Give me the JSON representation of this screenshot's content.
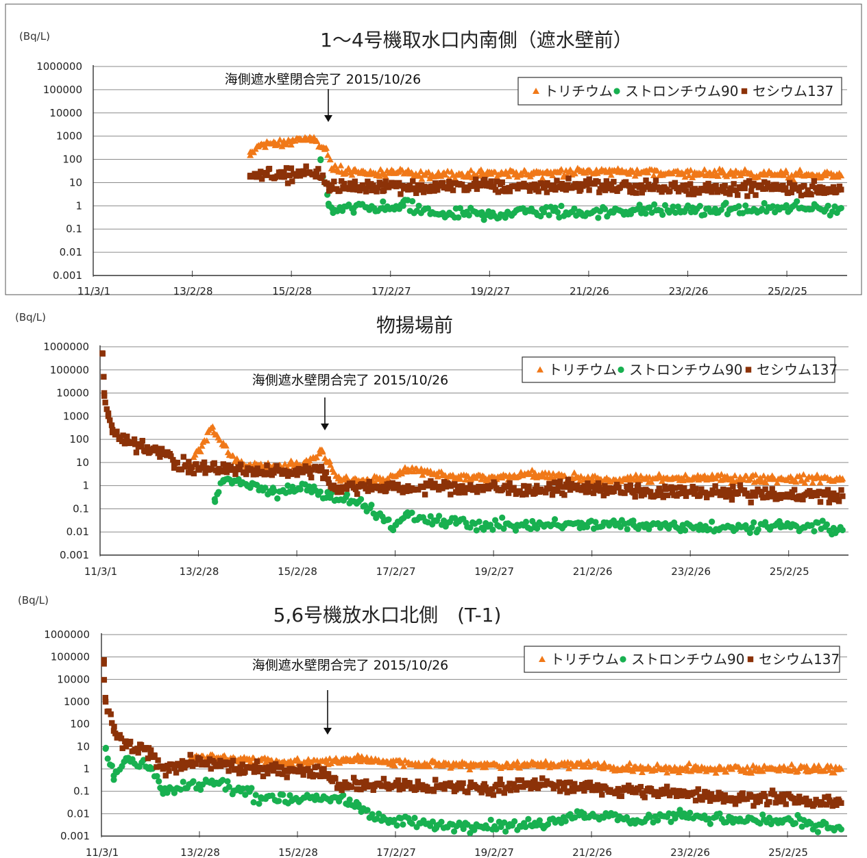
{
  "colors": {
    "tritium": "#f07818",
    "strontium": "#18b050",
    "cesium": "#8c3208"
  },
  "legend_labels": {
    "tritium": "トリチウム",
    "strontium": "ストロンチウム90",
    "cesium": "セシウム137"
  },
  "chart_data": [
    {
      "type": "scatter",
      "title": "1～4号機取水口内南側（遮水壁前）",
      "ylabel": "(Bq/L)",
      "y_scale": "log",
      "ylim": [
        0.001,
        1000000
      ],
      "y_ticks": [
        "1000000",
        "100000",
        "10000",
        "1000",
        "100",
        "10",
        "1",
        "0.1",
        "0.01",
        "0.001"
      ],
      "x_ticks": [
        "11/3/1",
        "13/2/28",
        "15/2/28",
        "17/2/27",
        "19/2/27",
        "21/2/26",
        "23/2/26",
        "25/2/25"
      ],
      "xlim": [
        "2011-03-01",
        "2026-05-15"
      ],
      "grid": true,
      "legend_position": "top-right",
      "annotation": {
        "text": "海側遮水壁閉合完了 2015/10/26",
        "date": "2015-10-26"
      },
      "series": [
        {
          "name": "トリチウム",
          "key": "tritium",
          "marker": "triangle",
          "points": [
            [
              "2014-05-01",
              150
            ],
            [
              "2014-07-01",
              400
            ],
            [
              "2014-09-01",
              500
            ],
            [
              "2014-11-01",
              400
            ],
            [
              "2015-01-01",
              500
            ],
            [
              "2015-03-01",
              600
            ],
            [
              "2015-05-01",
              800
            ],
            [
              "2015-07-01",
              700
            ],
            [
              "2015-09-01",
              600
            ],
            [
              "2015-11-01",
              300
            ],
            [
              "2016-01-01",
              40
            ],
            [
              "2016-06-01",
              30
            ],
            [
              "2017-01-01",
              25
            ],
            [
              "2018-01-01",
              22
            ],
            [
              "2019-01-01",
              25
            ],
            [
              "2020-01-01",
              25
            ],
            [
              "2021-01-01",
              30
            ],
            [
              "2022-01-01",
              30
            ],
            [
              "2023-01-01",
              25
            ],
            [
              "2024-01-01",
              25
            ],
            [
              "2025-01-01",
              22
            ],
            [
              "2026-04-01",
              20
            ]
          ]
        },
        {
          "name": "ストロンチウム90",
          "key": "strontium",
          "marker": "circle",
          "points": [
            [
              "2015-10-01",
              100
            ],
            [
              "2015-12-01",
              1
            ],
            [
              "2016-01-01",
              0.5
            ],
            [
              "2016-06-01",
              0.8
            ],
            [
              "2017-01-01",
              0.8
            ],
            [
              "2017-06-01",
              1
            ],
            [
              "2018-01-01",
              0.5
            ],
            [
              "2019-01-01",
              0.4
            ],
            [
              "2020-01-01",
              0.6
            ],
            [
              "2021-01-01",
              0.5
            ],
            [
              "2022-01-01",
              0.6
            ],
            [
              "2023-01-01",
              0.6
            ],
            [
              "2024-01-01",
              0.7
            ],
            [
              "2025-01-01",
              0.7
            ],
            [
              "2026-04-01",
              0.8
            ]
          ]
        },
        {
          "name": "セシウム137",
          "key": "cesium",
          "marker": "square",
          "points": [
            [
              "2014-05-01",
              20
            ],
            [
              "2014-09-01",
              25
            ],
            [
              "2015-01-01",
              20
            ],
            [
              "2015-05-01",
              25
            ],
            [
              "2015-09-01",
              30
            ],
            [
              "2015-12-01",
              8
            ],
            [
              "2016-06-01",
              6
            ],
            [
              "2017-01-01",
              8
            ],
            [
              "2018-01-01",
              6
            ],
            [
              "2019-01-01",
              8
            ],
            [
              "2020-01-01",
              6
            ],
            [
              "2021-01-01",
              8
            ],
            [
              "2022-01-01",
              6
            ],
            [
              "2023-01-01",
              6
            ],
            [
              "2024-01-01",
              5
            ],
            [
              "2025-01-01",
              6
            ],
            [
              "2026-04-01",
              5
            ]
          ]
        }
      ]
    },
    {
      "type": "scatter",
      "title": "物揚場前",
      "ylabel": "(Bq/L)",
      "y_scale": "log",
      "ylim": [
        0.001,
        1000000
      ],
      "y_ticks": [
        "1000000",
        "100000",
        "10000",
        "1000",
        "100",
        "10",
        "1",
        "0.1",
        "0.01",
        "0.001"
      ],
      "x_ticks": [
        "11/3/1",
        "13/2/28",
        "15/2/28",
        "17/2/27",
        "19/2/27",
        "21/2/26",
        "23/2/26",
        "25/2/25"
      ],
      "xlim": [
        "2011-03-01",
        "2026-05-15"
      ],
      "grid": true,
      "legend_position": "top-right",
      "annotation": {
        "text": "海側遮水壁閉合完了 2015/10/26",
        "date": "2015-10-26"
      },
      "series": [
        {
          "name": "トリチウム",
          "key": "tritium",
          "marker": "triangle",
          "points": [
            [
              "2013-06-01",
              300
            ],
            [
              "2013-01-01",
              6
            ],
            [
              "2014-01-01",
              8
            ],
            [
              "2014-09-01",
              6
            ],
            [
              "2015-06-01",
              12
            ],
            [
              "2015-09-01",
              35
            ],
            [
              "2016-01-01",
              2
            ],
            [
              "2017-01-01",
              2
            ],
            [
              "2017-06-01",
              5
            ],
            [
              "2018-01-01",
              3
            ],
            [
              "2019-01-01",
              2
            ],
            [
              "2020-01-01",
              3
            ],
            [
              "2021-01-01",
              2
            ],
            [
              "2022-01-01",
              2
            ],
            [
              "2023-01-01",
              2
            ],
            [
              "2024-01-01",
              2
            ],
            [
              "2025-01-01",
              2
            ],
            [
              "2026-04-01",
              2
            ]
          ]
        },
        {
          "name": "ストロンチウム90",
          "key": "strontium",
          "marker": "circle",
          "points": [
            [
              "2013-07-01",
              0.2
            ],
            [
              "2013-09-01",
              1.5
            ],
            [
              "2014-03-01",
              1
            ],
            [
              "2014-09-01",
              0.5
            ],
            [
              "2015-06-01",
              0.8
            ],
            [
              "2015-11-01",
              0.3
            ],
            [
              "2016-06-01",
              0.2
            ],
            [
              "2017-03-01",
              0.02
            ],
            [
              "2017-06-01",
              0.05
            ],
            [
              "2018-01-01",
              0.03
            ],
            [
              "2019-01-01",
              0.02
            ],
            [
              "2020-01-01",
              0.02
            ],
            [
              "2021-01-01",
              0.02
            ],
            [
              "2022-01-01",
              0.02
            ],
            [
              "2023-01-01",
              0.02
            ],
            [
              "2024-01-01",
              0.015
            ],
            [
              "2025-01-01",
              0.02
            ],
            [
              "2026-04-01",
              0.012
            ]
          ]
        },
        {
          "name": "セシウム137",
          "key": "cesium",
          "marker": "square",
          "points": [
            [
              "2011-03-20",
              500000
            ],
            [
              "2011-04-01",
              10000
            ],
            [
              "2011-05-01",
              1000
            ],
            [
              "2011-06-01",
              200
            ],
            [
              "2011-09-01",
              80
            ],
            [
              "2012-01-01",
              50
            ],
            [
              "2012-06-01",
              30
            ],
            [
              "2012-09-01",
              10
            ],
            [
              "2013-01-01",
              6
            ],
            [
              "2014-01-01",
              5
            ],
            [
              "2015-01-01",
              4
            ],
            [
              "2015-09-01",
              5
            ],
            [
              "2015-12-01",
              0.8
            ],
            [
              "2016-06-01",
              0.9
            ],
            [
              "2017-01-01",
              0.8
            ],
            [
              "2018-01-01",
              0.9
            ],
            [
              "2019-01-01",
              0.8
            ],
            [
              "2020-01-01",
              0.7
            ],
            [
              "2021-01-01",
              0.8
            ],
            [
              "2022-01-01",
              0.6
            ],
            [
              "2023-01-01",
              0.5
            ],
            [
              "2024-01-01",
              0.5
            ],
            [
              "2025-01-01",
              0.4
            ],
            [
              "2026-04-01",
              0.35
            ]
          ]
        }
      ]
    },
    {
      "type": "scatter",
      "title": "5,6号機放水口北側　(T-1)",
      "ylabel": "(Bq/L)",
      "y_scale": "log",
      "ylim": [
        0.001,
        1000000
      ],
      "y_ticks": [
        "1000000",
        "100000",
        "10000",
        "1000",
        "100",
        "10",
        "1",
        "0.1",
        "0.01",
        "0.001"
      ],
      "x_ticks": [
        "11/3/1",
        "13/2/28",
        "15/2/28",
        "17/2/27",
        "19/2/27",
        "21/2/26",
        "23/2/26",
        "25/2/25"
      ],
      "xlim": [
        "2011-03-01",
        "2026-05-15"
      ],
      "grid": true,
      "legend_position": "top-right",
      "annotation": {
        "text": "海側遮水壁閉合完了 2015/10/26",
        "date": "2015-10-26"
      },
      "series": [
        {
          "name": "トリチウム",
          "key": "tritium",
          "marker": "triangle",
          "points": [
            [
              "2013-01-01",
              3
            ],
            [
              "2014-01-01",
              3
            ],
            [
              "2015-01-01",
              2
            ],
            [
              "2016-01-01",
              2
            ],
            [
              "2016-06-01",
              3
            ],
            [
              "2017-01-01",
              2
            ],
            [
              "2018-01-01",
              1.5
            ],
            [
              "2019-01-01",
              1.5
            ],
            [
              "2020-01-01",
              1.5
            ],
            [
              "2021-01-01",
              1.5
            ],
            [
              "2022-01-01",
              1
            ],
            [
              "2023-01-01",
              1
            ],
            [
              "2024-01-01",
              1
            ],
            [
              "2025-01-01",
              1
            ],
            [
              "2026-04-01",
              1
            ]
          ]
        },
        {
          "name": "ストロンチウム90",
          "key": "strontium",
          "marker": "circle",
          "points": [
            [
              "2011-04-01",
              8
            ],
            [
              "2011-06-01",
              0.5
            ],
            [
              "2011-09-01",
              3
            ],
            [
              "2012-03-01",
              1
            ],
            [
              "2012-06-01",
              0.1
            ],
            [
              "2013-06-01",
              0.3
            ],
            [
              "2014-01-01",
              0.1
            ],
            [
              "2014-06-01",
              0.05
            ],
            [
              "2015-06-01",
              0.05
            ],
            [
              "2016-01-01",
              0.05
            ],
            [
              "2016-06-01",
              0.02
            ],
            [
              "2017-01-01",
              0.005
            ],
            [
              "2018-01-01",
              0.003
            ],
            [
              "2019-01-01",
              0.003
            ],
            [
              "2020-01-01",
              0.003
            ],
            [
              "2021-01-01",
              0.01
            ],
            [
              "2022-01-01",
              0.005
            ],
            [
              "2023-01-01",
              0.01
            ],
            [
              "2024-01-01",
              0.005
            ],
            [
              "2025-01-01",
              0.005
            ],
            [
              "2026-04-01",
              0.002
            ]
          ]
        },
        {
          "name": "セシウム137",
          "key": "cesium",
          "marker": "square",
          "points": [
            [
              "2011-03-20",
              50000
            ],
            [
              "2011-04-01",
              1000
            ],
            [
              "2011-06-01",
              50
            ],
            [
              "2011-09-01",
              10
            ],
            [
              "2012-03-01",
              5
            ],
            [
              "2012-06-01",
              1
            ],
            [
              "2013-01-01",
              2
            ],
            [
              "2014-01-01",
              1
            ],
            [
              "2015-01-01",
              1
            ],
            [
              "2015-09-01",
              0.8
            ],
            [
              "2016-01-01",
              0.2
            ],
            [
              "2017-01-01",
              0.2
            ],
            [
              "2018-01-01",
              0.15
            ],
            [
              "2019-01-01",
              0.15
            ],
            [
              "2020-01-01",
              0.2
            ],
            [
              "2021-01-01",
              0.15
            ],
            [
              "2022-01-01",
              0.1
            ],
            [
              "2023-01-01",
              0.08
            ],
            [
              "2024-01-01",
              0.05
            ],
            [
              "2025-01-01",
              0.05
            ],
            [
              "2026-04-01",
              0.03
            ]
          ]
        }
      ]
    }
  ]
}
